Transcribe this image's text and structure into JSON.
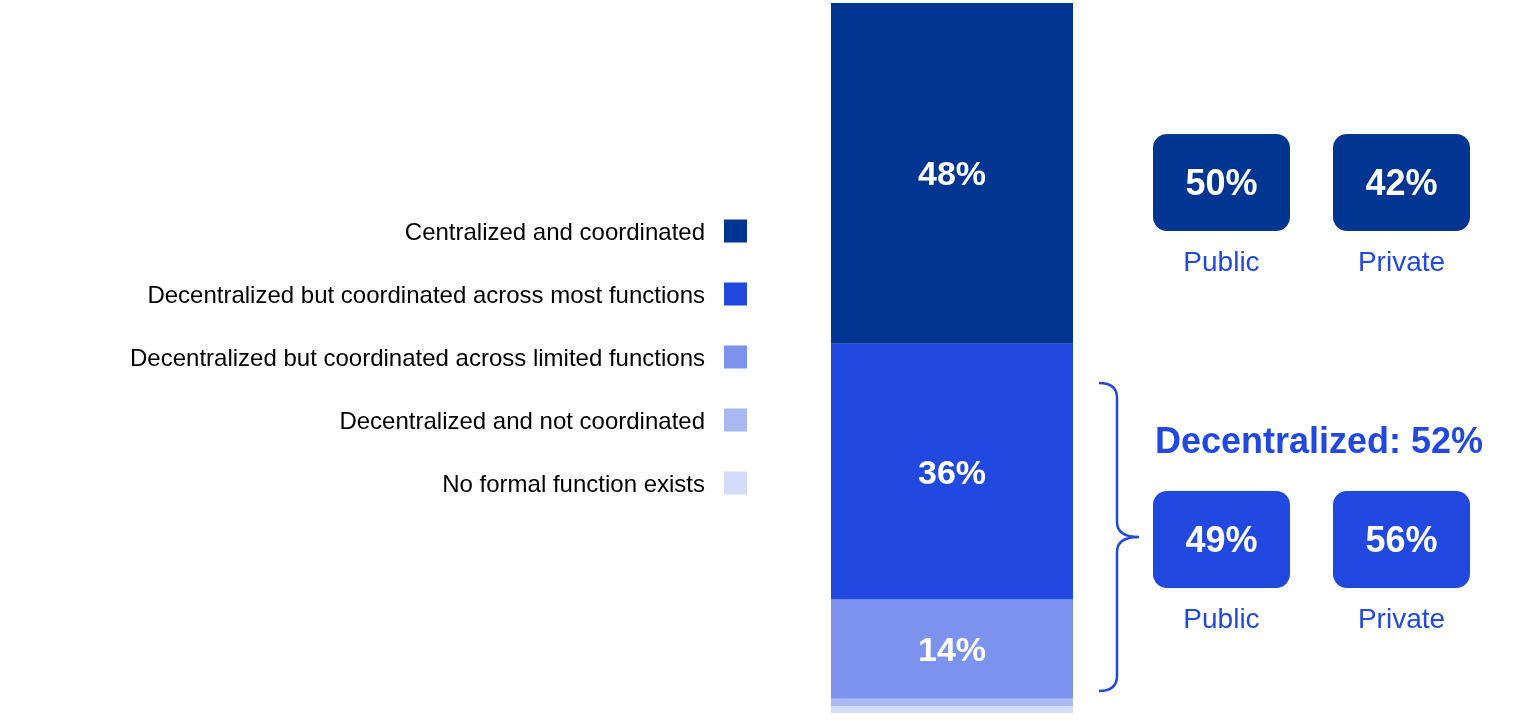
{
  "chart_data": {
    "type": "bar",
    "stacked": true,
    "categories": [
      null
    ],
    "ylim": [
      0,
      100
    ],
    "legend": "left",
    "series": [
      {
        "name": "No formal function exists",
        "color": "#d3dcf8",
        "values": [
          1
        ],
        "value_labels": [
          null
        ]
      },
      {
        "name": "Decentralized and not coordinated",
        "color": "#a9b8f1",
        "values": [
          1
        ],
        "value_labels": [
          null
        ]
      },
      {
        "name": "Decentralized but coordinated across limited functions",
        "color": "#7b93ec",
        "values": [
          14
        ],
        "value_labels": [
          "14%"
        ]
      },
      {
        "name": "Decentralized but coordinated across most functions",
        "color": "#2149e0",
        "values": [
          36
        ],
        "value_labels": [
          "36%"
        ]
      },
      {
        "name": "Centralized and coordinated",
        "color": "#003591",
        "values": [
          48
        ],
        "value_labels": [
          "48%"
        ]
      }
    ],
    "annotations": [
      "50%",
      "42%",
      "Public",
      "Private",
      "Decentralized: 52%",
      "49%",
      "56%",
      "Public",
      "Private"
    ]
  }
}
